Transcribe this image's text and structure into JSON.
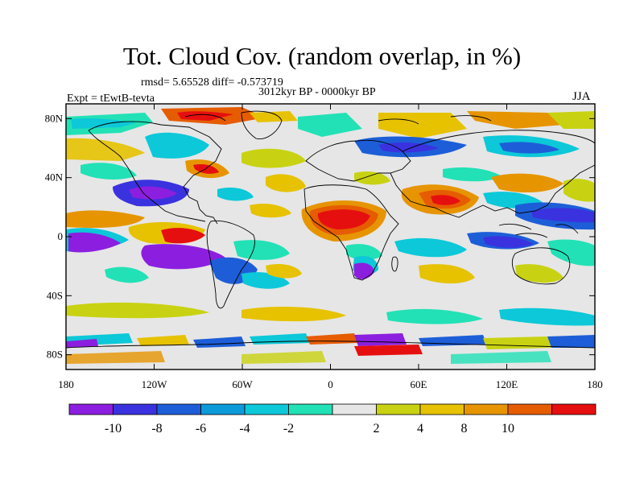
{
  "title": "Tot. Cloud Cov. (random overlap, in %)",
  "stats_line": "rmsd= 5.65528 diff= -0.573719",
  "period_line": "3012kyr BP - 0000kyr BP",
  "experiment_label": "Expt = tEwtB-tevta",
  "season_label": "JJA",
  "lat_ticks": [
    {
      "value": 80,
      "label": "80N"
    },
    {
      "value": 40,
      "label": "40N"
    },
    {
      "value": 0,
      "label": "0"
    },
    {
      "value": -40,
      "label": "40S"
    },
    {
      "value": -80,
      "label": "80S"
    }
  ],
  "lon_ticks": [
    {
      "value": -180,
      "label": "180"
    },
    {
      "value": -120,
      "label": "120W"
    },
    {
      "value": -60,
      "label": "60W"
    },
    {
      "value": 0,
      "label": "0"
    },
    {
      "value": 60,
      "label": "60E"
    },
    {
      "value": 120,
      "label": "120E"
    },
    {
      "value": 180,
      "label": "180"
    }
  ],
  "colorbar": {
    "colors": [
      "#8c1fdf",
      "#3a32df",
      "#1d5ed8",
      "#0c9ad8",
      "#0cc8d8",
      "#22e1b6",
      "#e6e6e6",
      "#c8d212",
      "#e6c200",
      "#e69500",
      "#e65c00",
      "#e60f0f"
    ],
    "labels": [
      "-10",
      "-8",
      "-6",
      "-4",
      "-2",
      "2",
      "4",
      "8",
      "10"
    ]
  },
  "colors": {
    "background": "#ffffff",
    "neutral": "#e6e6e6",
    "coastline": "#000000"
  }
}
